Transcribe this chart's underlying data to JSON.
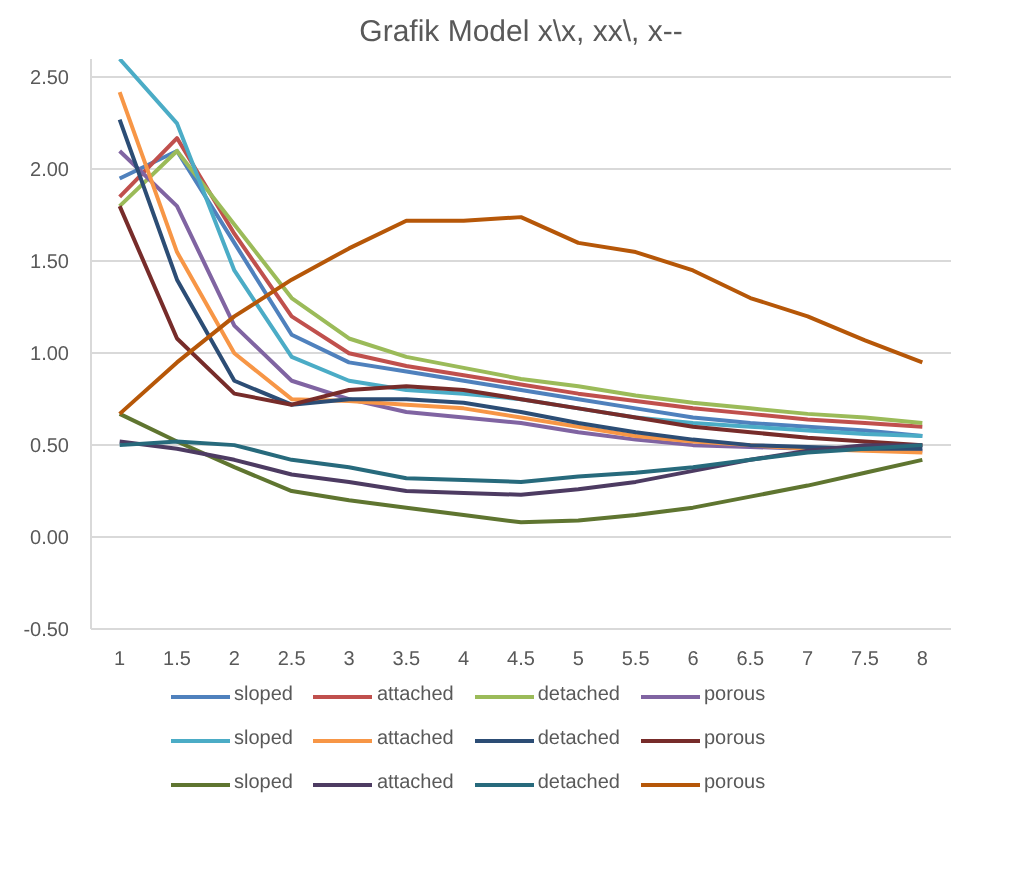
{
  "chart_data": {
    "type": "line",
    "title": "Grafik Model x\\x, xx\\, x--",
    "categories": [
      "1",
      "1.5",
      "2",
      "2.5",
      "3",
      "3.5",
      "4",
      "4.5",
      "5",
      "5.5",
      "6",
      "6.5",
      "7",
      "7.5",
      "8"
    ],
    "ylim": [
      -0.5,
      2.6
    ],
    "yticks": [
      {
        "value": -0.5,
        "label": "-0.50"
      },
      {
        "value": 0,
        "label": "0.00"
      },
      {
        "value": 0.5,
        "label": "0.50"
      },
      {
        "value": 1,
        "label": "1.00"
      },
      {
        "value": 1.5,
        "label": "1.50"
      },
      {
        "value": 2,
        "label": "2.00"
      },
      {
        "value": 2.5,
        "label": "2.50"
      }
    ],
    "grid": "y",
    "legend": "bottom",
    "marker": "none",
    "line_style": "solid",
    "series": [
      {
        "name": "sloped",
        "color": "#4f81bd",
        "values": [
          1.95,
          2.1,
          1.6,
          1.1,
          0.95,
          0.9,
          0.85,
          0.8,
          0.75,
          0.7,
          0.65,
          0.62,
          0.6,
          0.58,
          0.55
        ]
      },
      {
        "name": "attached",
        "color": "#c0504d",
        "values": [
          1.85,
          2.17,
          1.65,
          1.2,
          1.0,
          0.93,
          0.88,
          0.83,
          0.78,
          0.74,
          0.7,
          0.67,
          0.64,
          0.62,
          0.6
        ]
      },
      {
        "name": "detached",
        "color": "#9bbb59",
        "values": [
          1.8,
          2.1,
          1.7,
          1.3,
          1.08,
          0.98,
          0.92,
          0.86,
          0.82,
          0.77,
          0.73,
          0.7,
          0.67,
          0.65,
          0.62
        ]
      },
      {
        "name": "porous",
        "color": "#8064a2",
        "values": [
          2.1,
          1.8,
          1.15,
          0.85,
          0.75,
          0.68,
          0.65,
          0.62,
          0.57,
          0.53,
          0.5,
          0.49,
          0.48,
          0.48,
          0.47
        ]
      },
      {
        "name": "sloped",
        "color": "#4bacc6",
        "values": [
          2.6,
          2.25,
          1.45,
          0.98,
          0.85,
          0.8,
          0.78,
          0.75,
          0.7,
          0.65,
          0.62,
          0.6,
          0.58,
          0.56,
          0.55
        ]
      },
      {
        "name": "attached",
        "color": "#f79646",
        "values": [
          2.42,
          1.55,
          1.0,
          0.75,
          0.74,
          0.72,
          0.7,
          0.65,
          0.6,
          0.55,
          0.52,
          0.5,
          0.48,
          0.47,
          0.46
        ]
      },
      {
        "name": "detached",
        "color": "#2c4d75",
        "values": [
          2.27,
          1.4,
          0.85,
          0.72,
          0.75,
          0.75,
          0.73,
          0.68,
          0.62,
          0.57,
          0.53,
          0.5,
          0.49,
          0.48,
          0.48
        ]
      },
      {
        "name": "porous",
        "color": "#772c2a",
        "values": [
          1.8,
          1.08,
          0.78,
          0.72,
          0.8,
          0.82,
          0.8,
          0.75,
          0.7,
          0.65,
          0.6,
          0.57,
          0.54,
          0.52,
          0.5
        ]
      },
      {
        "name": "sloped",
        "color": "#5f7530",
        "values": [
          0.67,
          0.52,
          0.38,
          0.25,
          0.2,
          0.16,
          0.12,
          0.08,
          0.09,
          0.12,
          0.16,
          0.22,
          0.28,
          0.35,
          0.42
        ]
      },
      {
        "name": "attached",
        "color": "#4d3b62",
        "values": [
          0.52,
          0.48,
          0.42,
          0.34,
          0.3,
          0.25,
          0.24,
          0.23,
          0.26,
          0.3,
          0.36,
          0.42,
          0.47,
          0.5,
          0.5
        ]
      },
      {
        "name": "detached",
        "color": "#276a7c",
        "values": [
          0.5,
          0.52,
          0.5,
          0.42,
          0.38,
          0.32,
          0.31,
          0.3,
          0.33,
          0.35,
          0.38,
          0.42,
          0.46,
          0.48,
          0.5
        ]
      },
      {
        "name": "porous",
        "color": "#b65708",
        "values": [
          0.67,
          0.95,
          1.2,
          1.4,
          1.57,
          1.72,
          1.72,
          1.74,
          1.6,
          1.55,
          1.45,
          1.3,
          1.2,
          1.07,
          0.95
        ]
      }
    ]
  }
}
